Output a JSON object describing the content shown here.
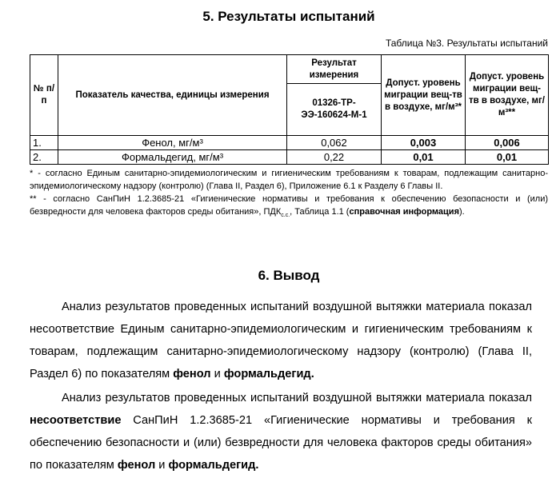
{
  "section5_title": "5.  Результаты испытаний",
  "table_caption": "Таблица №3. Результаты испытаний",
  "table": {
    "headers": {
      "num": "№ п/п",
      "indicator": "Показатель качества, единицы измерения",
      "result": "Результат измерения",
      "sample": "01326-ТР-ЭЭ-160624-М-1",
      "limit1": "Допуст. уровень миграции вещ-тв в воздухе, мг/м³*",
      "limit2": "Допуст. уровень миграции вещ-тв в воздухе, мг/м³**"
    },
    "rows": [
      {
        "num": "1.",
        "indicator": "Фенол, мг/м³",
        "result": "0,062",
        "limit1": "0,003",
        "limit2": "0,006"
      },
      {
        "num": "2.",
        "indicator": "Формальдегид, мг/м³",
        "result": "0,22",
        "limit1": "0,01",
        "limit2": "0,01"
      }
    ]
  },
  "footnotes": {
    "f1": "* - согласно Единым санитарно-эпидемиологическим и гигиеническим требованиям к товарам, подлежащим санитарно-эпидемиологическому надзору (контролю) (Глава II, Раздел 6), Приложение 6.1 к Разделу 6 Главы II.",
    "f2_a": "** - согласно СанПиН 1.2.3685-21 «Гигиенические нормативы и требования к обеспечению безопасности и (или) безвредности для человека факторов среды обитания», ПДК",
    "f2_sub": "с.с.",
    "f2_b": ", Таблица 1.1 (",
    "f2_bold": "справочная информация",
    "f2_c": ")."
  },
  "section6_title": "6. Вывод",
  "para1": {
    "a": "Анализ результатов проведенных испытаний воздушной вытяжки материала показал несоответствие Единым санитарно-эпидемиологическим и гигиеническим требованиям к товарам, подлежащим санитарно-эпидемиологическому надзору (контролю) (Глава II, Раздел 6) по показателям ",
    "b1": "фенол",
    "c": " и ",
    "b2": "формальдегид."
  },
  "para2": {
    "a": "Анализ результатов проведенных испытаний воздушной вытяжки материала показал ",
    "b0": "несоответствие",
    "a2": " СанПиН 1.2.3685-21 «Гигиенические нормативы и требования к обеспечению безопасности и (или) безвредности для человека факторов среды обитания» по показателям ",
    "b1": "фенол",
    "c": " и ",
    "b2": "формальдегид."
  }
}
